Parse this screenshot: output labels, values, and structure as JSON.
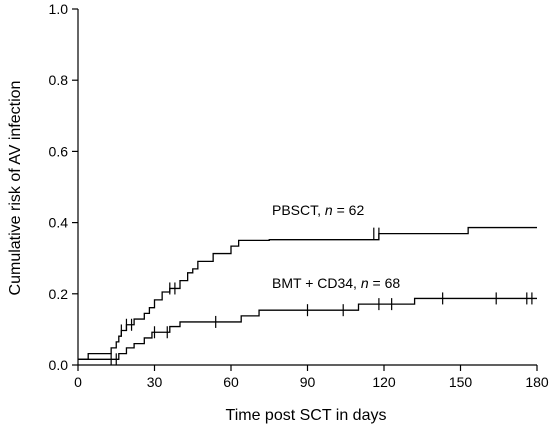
{
  "chart_data": {
    "type": "line",
    "step": true,
    "xlabel": "Time post SCT in days",
    "ylabel": "Cumulative risk of AV infection",
    "xlim": [
      0,
      180
    ],
    "ylim": [
      0,
      1.0
    ],
    "xticks": [
      0,
      30,
      60,
      90,
      120,
      150,
      180
    ],
    "yticks": [
      0.0,
      0.2,
      0.4,
      0.6,
      0.8,
      1.0
    ],
    "ytick_labels": [
      "0.0",
      "0.2",
      "0.4",
      "0.6",
      "0.8",
      "1.0"
    ],
    "grid": false,
    "series": [
      {
        "label_prefix": "PBSCT, ",
        "label_n": "n",
        "label_suffix": " = 62",
        "points": [
          [
            0,
            0.016
          ],
          [
            4,
            0.032
          ],
          [
            11,
            0.032
          ],
          [
            13,
            0.048
          ],
          [
            15,
            0.065
          ],
          [
            16,
            0.081
          ],
          [
            17,
            0.097
          ],
          [
            19,
            0.113
          ],
          [
            22,
            0.129
          ],
          [
            26,
            0.145
          ],
          [
            28,
            0.161
          ],
          [
            30,
            0.183
          ],
          [
            33,
            0.205
          ],
          [
            36,
            0.215
          ],
          [
            40,
            0.237
          ],
          [
            43,
            0.259
          ],
          [
            45,
            0.27
          ],
          [
            47,
            0.291
          ],
          [
            53,
            0.313
          ],
          [
            60,
            0.334
          ],
          [
            63,
            0.35
          ],
          [
            75,
            0.352
          ],
          [
            118,
            0.369
          ],
          [
            153,
            0.386
          ],
          [
            180,
            0.386
          ]
        ],
        "censored": [
          [
            17,
            0.097
          ],
          [
            19,
            0.113
          ],
          [
            21,
            0.113
          ],
          [
            36,
            0.215
          ],
          [
            38,
            0.215
          ],
          [
            116,
            0.369
          ],
          [
            118,
            0.369
          ]
        ]
      },
      {
        "label_prefix": "BMT + CD34, ",
        "label_n": "n",
        "label_suffix": " = 68",
        "points": [
          [
            0,
            0.016
          ],
          [
            13,
            0.016
          ],
          [
            16,
            0.032
          ],
          [
            19,
            0.048
          ],
          [
            22,
            0.06
          ],
          [
            26,
            0.076
          ],
          [
            29,
            0.092
          ],
          [
            36,
            0.108
          ],
          [
            40,
            0.121
          ],
          [
            64,
            0.138
          ],
          [
            71,
            0.154
          ],
          [
            95,
            0.154
          ],
          [
            110,
            0.171
          ],
          [
            132,
            0.187
          ],
          [
            180,
            0.187
          ]
        ],
        "censored": [
          [
            13,
            0.016
          ],
          [
            15,
            0.016
          ],
          [
            30,
            0.092
          ],
          [
            35,
            0.092
          ],
          [
            54,
            0.121
          ],
          [
            90,
            0.154
          ],
          [
            104,
            0.154
          ],
          [
            118,
            0.171
          ],
          [
            123,
            0.171
          ],
          [
            143,
            0.187
          ],
          [
            164,
            0.187
          ],
          [
            176,
            0.187
          ],
          [
            178,
            0.187
          ]
        ]
      }
    ]
  }
}
